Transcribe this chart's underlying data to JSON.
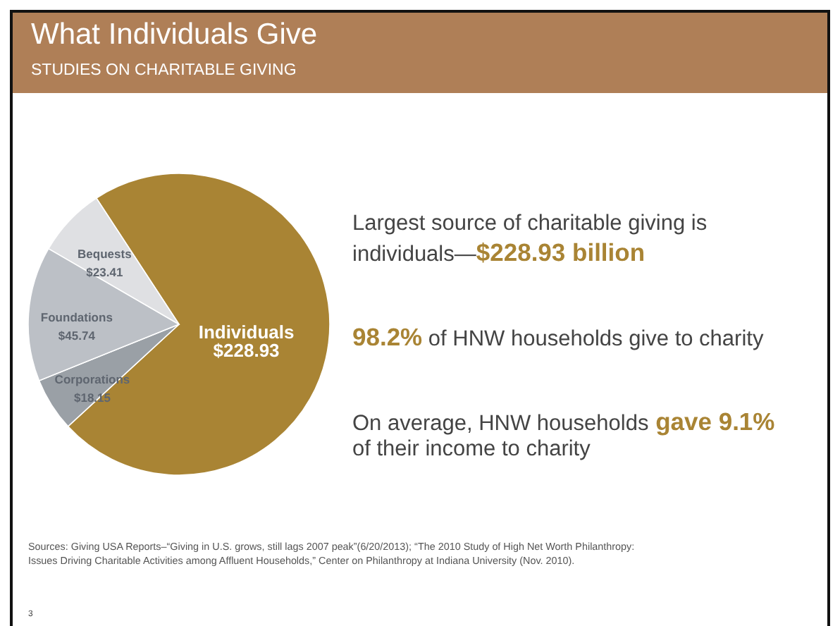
{
  "chart_data": {
    "type": "pie",
    "title": "What Individuals Give",
    "subtitle": "STUDIES ON CHARITABLE GIVING",
    "categories": [
      "Individuals",
      "Corporations",
      "Foundations",
      "Bequests"
    ],
    "values": [
      228.93,
      18.15,
      45.74,
      23.41
    ],
    "value_labels": [
      "$228.93",
      "$18.15",
      "$45.74",
      "$23.41"
    ],
    "colors": [
      "#a98434",
      "#9aa0a6",
      "#bcc0c6",
      "#dfe0e3"
    ],
    "annotations": [
      "Largest source of charitable giving is",
      "individuals—",
      "$228.93 billion",
      "98.2%",
      "of HNW households give to charity",
      "On average, HNW households",
      "gave 9.1%",
      "of their income to charity",
      "Sources: Giving USA Reports–“Giving in U.S. grows, still lags 2007 peak”(6/20/2013); “The 2010 Study of High Net Worth Philanthropy: Issues Driving Charitable Activities among Affluent Households,” Center on Philanthropy at Indiana University (Nov. 2010).",
      "3"
    ]
  }
}
